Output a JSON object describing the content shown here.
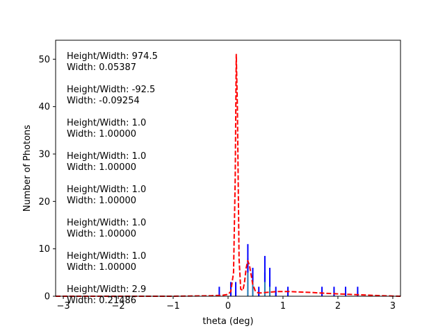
{
  "chart_data": {
    "type": "bar",
    "title": "",
    "xlabel": "theta (deg)",
    "ylabel": "Number of Photons",
    "xlim": [
      -3.14,
      3.14
    ],
    "ylim": [
      0,
      54
    ],
    "xticks": [
      -3,
      -2,
      -1,
      0,
      1,
      2,
      3
    ],
    "xtick_labels": [
      "−3",
      "−2",
      "−1",
      "0",
      "1",
      "2",
      "3"
    ],
    "yticks": [
      0,
      10,
      20,
      30,
      40,
      50
    ],
    "ytick_labels": [
      "0",
      "10",
      "20",
      "30",
      "40",
      "50"
    ],
    "grid": false,
    "legend": "none",
    "bar_width": 0.025,
    "bars": [
      {
        "x": 0.05,
        "y": 1
      },
      {
        "x": 0.14,
        "y": 1
      },
      {
        "x": 0.36,
        "y": 8
      },
      {
        "x": 0.45,
        "y": 5
      },
      {
        "x": 0.56,
        "y": 1
      },
      {
        "x": 0.67,
        "y": 5
      },
      {
        "x": 0.76,
        "y": 4
      },
      {
        "x": 0.87,
        "y": 1
      },
      {
        "x": 1.09,
        "y": 1
      },
      {
        "x": 1.71,
        "y": 1
      },
      {
        "x": 1.93,
        "y": 1
      },
      {
        "x": 2.14,
        "y": 1
      },
      {
        "x": 2.36,
        "y": 1
      }
    ],
    "errorbars": [
      {
        "x": -0.16,
        "lo": 0,
        "hi": 2
      },
      {
        "x": 0.05,
        "lo": 0,
        "hi": 3
      },
      {
        "x": 0.14,
        "lo": 0,
        "hi": 3
      },
      {
        "x": 0.36,
        "lo": 5,
        "hi": 11
      },
      {
        "x": 0.45,
        "lo": 3,
        "hi": 6
      },
      {
        "x": 0.56,
        "lo": 0,
        "hi": 2
      },
      {
        "x": 0.67,
        "lo": 3,
        "hi": 8.5
      },
      {
        "x": 0.76,
        "lo": 2,
        "hi": 6
      },
      {
        "x": 0.87,
        "lo": 0,
        "hi": 2
      },
      {
        "x": 1.09,
        "lo": 0,
        "hi": 2
      },
      {
        "x": 1.71,
        "lo": 0,
        "hi": 2
      },
      {
        "x": 1.93,
        "lo": 0,
        "hi": 2
      },
      {
        "x": 2.14,
        "lo": 0,
        "hi": 2
      },
      {
        "x": 2.36,
        "lo": 0,
        "hi": 2
      }
    ],
    "fit_curve": {
      "style": "dashed",
      "color": "#ff0000",
      "x": [
        -3.14,
        -1.0,
        -0.3,
        -0.1,
        0.0,
        0.05,
        0.1,
        0.13,
        0.15,
        0.17,
        0.2,
        0.23,
        0.27,
        0.3,
        0.33,
        0.36,
        0.39,
        0.42,
        0.45,
        0.5,
        0.55,
        0.6,
        0.7,
        0.8,
        0.9,
        1.0,
        1.1,
        1.3,
        1.5,
        1.8,
        2.0,
        2.2,
        2.4,
        2.6,
        2.8,
        3.0,
        3.14
      ],
      "y": [
        0,
        0,
        0.1,
        0.2,
        0.4,
        1,
        5,
        25,
        51,
        40,
        8,
        1.5,
        1.2,
        3,
        6,
        7.5,
        6.5,
        4.5,
        2.5,
        1,
        0.7,
        0.7,
        0.8,
        0.9,
        1.0,
        1.0,
        1.0,
        0.9,
        0.8,
        0.6,
        0.5,
        0.4,
        0.3,
        0.2,
        0.1,
        0.05,
        0
      ]
    },
    "colors": {
      "bar": "#1f77b4",
      "errorbar": "#0000ff",
      "fit": "#ff0000"
    },
    "annotations": [
      {
        "line1": "Height/Width: 974.5",
        "line2": "Width: 0.05387"
      },
      {
        "line1": "Height/Width: -92.5",
        "line2": "Width: -0.09254"
      },
      {
        "line1": "Height/Width: 1.0",
        "line2": "Width: 1.00000"
      },
      {
        "line1": "Height/Width: 1.0",
        "line2": "Width: 1.00000"
      },
      {
        "line1": "Height/Width: 1.0",
        "line2": "Width: 1.00000"
      },
      {
        "line1": "Height/Width: 1.0",
        "line2": "Width: 1.00000"
      },
      {
        "line1": "Height/Width: 1.0",
        "line2": "Width: 1.00000"
      },
      {
        "line1": "Height/Width: 2.9",
        "line2": "Width: 0.21486"
      }
    ]
  }
}
